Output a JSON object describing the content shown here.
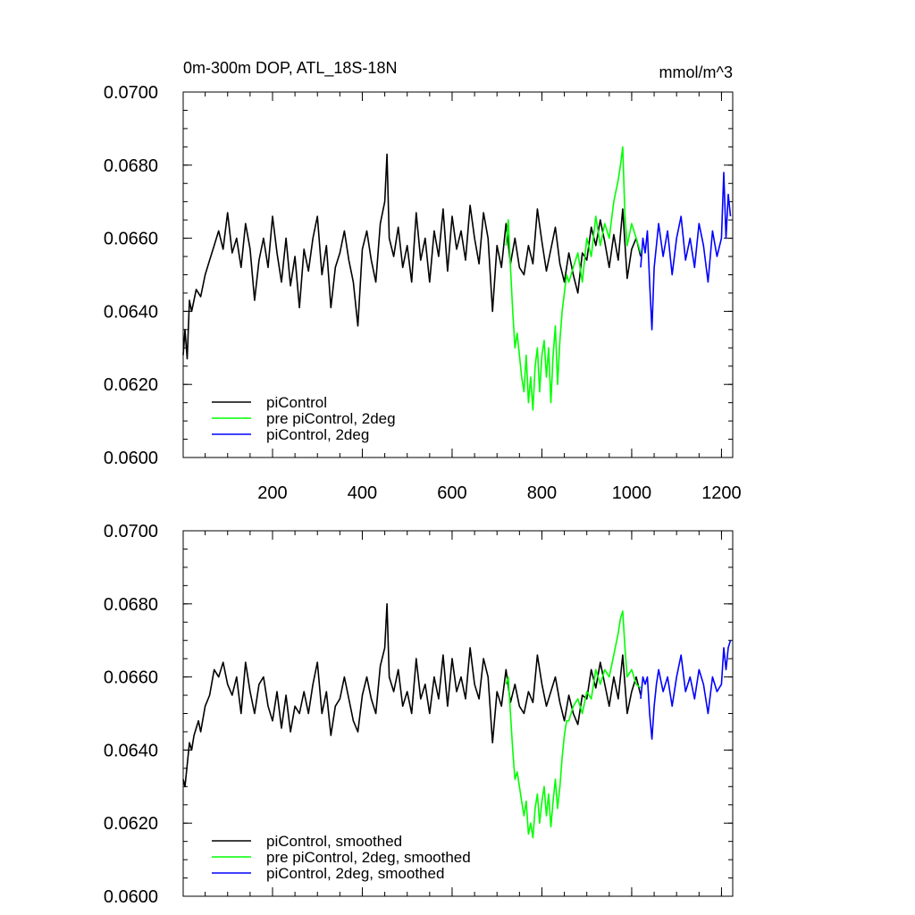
{
  "title_left": "0m-300m DOP, ATL_18S-18N",
  "title_right": "mmol/m^3",
  "series_style": [
    {
      "key": "piControl",
      "color": "#000000"
    },
    {
      "key": "pre_piControl_2deg",
      "color": "#00ff00"
    },
    {
      "key": "piControl_2deg",
      "color": "#0000ff"
    }
  ],
  "chart_data": [
    {
      "type": "line",
      "title": "0m-300m DOP, ATL_18S-18N",
      "units": "mmol/m^3",
      "xlim": [
        1,
        1225
      ],
      "ylim": [
        0.06,
        0.07
      ],
      "xticks": [
        200,
        400,
        600,
        800,
        1000,
        1200
      ],
      "xtick_labels": [
        "200",
        "400",
        "600",
        "800",
        "1000",
        "1200"
      ],
      "yticks": [
        0.06,
        0.062,
        0.064,
        0.066,
        0.068,
        0.07
      ],
      "ytick_labels": [
        "0.0600",
        "0.0620",
        "0.0640",
        "0.0660",
        "0.0680",
        "0.0700"
      ],
      "legend_position": "bottom-left",
      "series": [
        {
          "name": "piControl",
          "color": "#000000",
          "x": [
            1,
            5,
            10,
            15,
            20,
            30,
            40,
            50,
            60,
            70,
            80,
            90,
            100,
            110,
            120,
            130,
            140,
            150,
            160,
            170,
            180,
            190,
            200,
            210,
            220,
            230,
            240,
            250,
            260,
            270,
            280,
            290,
            300,
            310,
            320,
            330,
            340,
            350,
            360,
            370,
            380,
            390,
            400,
            410,
            420,
            430,
            440,
            450,
            455,
            460,
            470,
            480,
            490,
            500,
            510,
            520,
            530,
            540,
            550,
            560,
            570,
            580,
            590,
            600,
            610,
            620,
            630,
            640,
            650,
            660,
            670,
            680,
            690,
            700,
            710,
            720,
            730,
            740,
            750,
            760,
            770,
            780,
            790,
            800,
            810,
            820,
            830,
            840,
            850,
            860,
            870,
            880,
            890,
            900,
            910,
            920,
            930,
            940,
            950,
            960,
            970,
            980,
            990,
            1000,
            1010,
            1020
          ],
          "y": [
            0.0628,
            0.0635,
            0.0627,
            0.0643,
            0.064,
            0.0646,
            0.0644,
            0.065,
            0.0654,
            0.0658,
            0.0662,
            0.0657,
            0.0667,
            0.0656,
            0.066,
            0.0652,
            0.0664,
            0.0657,
            0.0643,
            0.0654,
            0.066,
            0.0652,
            0.0666,
            0.0656,
            0.0648,
            0.066,
            0.0647,
            0.0655,
            0.0641,
            0.0657,
            0.0651,
            0.066,
            0.0666,
            0.065,
            0.0658,
            0.0641,
            0.0652,
            0.0656,
            0.0662,
            0.0654,
            0.0648,
            0.0636,
            0.0657,
            0.0662,
            0.0654,
            0.0648,
            0.0664,
            0.067,
            0.0683,
            0.066,
            0.0655,
            0.0663,
            0.0652,
            0.0658,
            0.0648,
            0.0667,
            0.0654,
            0.066,
            0.0648,
            0.0662,
            0.0655,
            0.0668,
            0.0651,
            0.0666,
            0.0657,
            0.0662,
            0.0654,
            0.0669,
            0.066,
            0.0653,
            0.0667,
            0.066,
            0.064,
            0.0658,
            0.0652,
            0.0664,
            0.0653,
            0.066,
            0.0652,
            0.065,
            0.0658,
            0.0653,
            0.0668,
            0.0659,
            0.0651,
            0.0657,
            0.0663,
            0.0653,
            0.0648,
            0.0656,
            0.065,
            0.0645,
            0.0656,
            0.0654,
            0.0663,
            0.0658,
            0.0665,
            0.0659,
            0.0652,
            0.0661,
            0.0654,
            0.0668,
            0.0649,
            0.0657,
            0.066,
            0.0655
          ]
        },
        {
          "name": "pre piControl, 2deg",
          "color": "#00ff00",
          "x": [
            720,
            725,
            730,
            735,
            740,
            745,
            750,
            755,
            760,
            765,
            770,
            775,
            780,
            785,
            790,
            795,
            800,
            805,
            810,
            815,
            820,
            825,
            830,
            835,
            840,
            845,
            850,
            855,
            860,
            870,
            880,
            890,
            900,
            910,
            920,
            930,
            940,
            950,
            960,
            970,
            975,
            980,
            985,
            990,
            1000,
            1010,
            1020
          ],
          "y": [
            0.0658,
            0.0665,
            0.0652,
            0.064,
            0.063,
            0.0634,
            0.0628,
            0.0622,
            0.0618,
            0.0628,
            0.0615,
            0.0622,
            0.0613,
            0.0625,
            0.063,
            0.0618,
            0.0628,
            0.0632,
            0.0622,
            0.063,
            0.0615,
            0.0628,
            0.0636,
            0.062,
            0.0632,
            0.064,
            0.0645,
            0.065,
            0.0648,
            0.0652,
            0.0656,
            0.0648,
            0.066,
            0.0655,
            0.0666,
            0.0658,
            0.0664,
            0.066,
            0.067,
            0.0676,
            0.068,
            0.0685,
            0.0666,
            0.0658,
            0.0664,
            0.066,
            0.0656
          ]
        },
        {
          "name": "piControl, 2deg",
          "color": "#0000ff",
          "x": [
            1020,
            1025,
            1030,
            1035,
            1040,
            1045,
            1050,
            1055,
            1060,
            1070,
            1080,
            1090,
            1100,
            1110,
            1120,
            1130,
            1140,
            1150,
            1160,
            1170,
            1180,
            1190,
            1200,
            1205,
            1210,
            1215,
            1220
          ],
          "y": [
            0.0652,
            0.066,
            0.0656,
            0.0662,
            0.0648,
            0.0635,
            0.0652,
            0.0658,
            0.0664,
            0.0655,
            0.0662,
            0.065,
            0.066,
            0.0666,
            0.0654,
            0.066,
            0.0652,
            0.0664,
            0.0658,
            0.0648,
            0.0662,
            0.0655,
            0.066,
            0.0678,
            0.066,
            0.0672,
            0.0666
          ]
        }
      ]
    },
    {
      "type": "line",
      "xlim": [
        1,
        1225
      ],
      "ylim": [
        0.06,
        0.07
      ],
      "xticks": [
        200,
        400,
        600,
        800,
        1000,
        1200
      ],
      "yticks": [
        0.06,
        0.062,
        0.064,
        0.066,
        0.068,
        0.07
      ],
      "ytick_labels": [
        "0.0600",
        "0.0620",
        "0.0640",
        "0.0660",
        "0.0680",
        "0.0700"
      ],
      "legend_position": "bottom-left",
      "series": [
        {
          "name": "piControl, smoothed",
          "color": "#000000",
          "x": [
            1,
            5,
            10,
            15,
            20,
            25,
            30,
            35,
            40,
            50,
            60,
            70,
            80,
            90,
            100,
            110,
            120,
            130,
            140,
            150,
            160,
            170,
            180,
            190,
            200,
            210,
            220,
            230,
            240,
            250,
            260,
            270,
            280,
            290,
            300,
            310,
            320,
            330,
            340,
            350,
            360,
            370,
            380,
            390,
            400,
            410,
            420,
            430,
            440,
            450,
            455,
            460,
            470,
            480,
            490,
            500,
            510,
            520,
            530,
            540,
            550,
            560,
            570,
            580,
            590,
            600,
            610,
            620,
            630,
            640,
            650,
            660,
            670,
            680,
            690,
            700,
            710,
            720,
            730,
            740,
            750,
            760,
            770,
            780,
            790,
            800,
            810,
            820,
            830,
            840,
            850,
            860,
            870,
            880,
            890,
            900,
            910,
            920,
            930,
            940,
            950,
            960,
            970,
            980,
            990,
            1000,
            1010,
            1020
          ],
          "y": [
            0.0632,
            0.063,
            0.0636,
            0.0642,
            0.064,
            0.0644,
            0.0646,
            0.0648,
            0.0645,
            0.0652,
            0.0655,
            0.0662,
            0.066,
            0.0664,
            0.0658,
            0.0655,
            0.066,
            0.065,
            0.0664,
            0.0656,
            0.065,
            0.0658,
            0.066,
            0.0652,
            0.0648,
            0.0656,
            0.0646,
            0.0655,
            0.0645,
            0.0652,
            0.065,
            0.0656,
            0.065,
            0.0658,
            0.0664,
            0.065,
            0.0656,
            0.0644,
            0.0652,
            0.0654,
            0.066,
            0.0654,
            0.0648,
            0.0645,
            0.0655,
            0.066,
            0.0654,
            0.065,
            0.0663,
            0.0668,
            0.068,
            0.066,
            0.0656,
            0.0662,
            0.0652,
            0.0656,
            0.065,
            0.0665,
            0.0654,
            0.0658,
            0.065,
            0.066,
            0.0654,
            0.0666,
            0.0652,
            0.0665,
            0.0656,
            0.066,
            0.0654,
            0.0668,
            0.0658,
            0.0654,
            0.0665,
            0.066,
            0.0642,
            0.0656,
            0.0652,
            0.0662,
            0.0653,
            0.0658,
            0.0652,
            0.065,
            0.0656,
            0.0653,
            0.0666,
            0.0658,
            0.0652,
            0.0656,
            0.066,
            0.0653,
            0.0648,
            0.0655,
            0.065,
            0.0647,
            0.0655,
            0.0654,
            0.0662,
            0.0657,
            0.0664,
            0.0658,
            0.0652,
            0.066,
            0.0654,
            0.0666,
            0.065,
            0.0656,
            0.066,
            0.0655
          ]
        },
        {
          "name": "pre piControl, 2deg, smoothed",
          "color": "#00ff00",
          "x": [
            720,
            725,
            730,
            735,
            740,
            745,
            750,
            755,
            760,
            765,
            770,
            775,
            780,
            785,
            790,
            795,
            800,
            805,
            810,
            815,
            820,
            825,
            830,
            835,
            840,
            845,
            850,
            855,
            860,
            870,
            880,
            890,
            900,
            910,
            920,
            930,
            940,
            950,
            960,
            970,
            975,
            980,
            985,
            990,
            1000,
            1010,
            1020
          ],
          "y": [
            0.0658,
            0.066,
            0.065,
            0.064,
            0.0632,
            0.0634,
            0.063,
            0.0626,
            0.0622,
            0.0626,
            0.0617,
            0.062,
            0.0616,
            0.0624,
            0.0628,
            0.062,
            0.0626,
            0.063,
            0.0622,
            0.0628,
            0.0619,
            0.0626,
            0.0632,
            0.0624,
            0.063,
            0.0638,
            0.0644,
            0.0648,
            0.0648,
            0.0652,
            0.0654,
            0.065,
            0.0656,
            0.0654,
            0.0662,
            0.0658,
            0.0662,
            0.066,
            0.0666,
            0.0672,
            0.0676,
            0.0678,
            0.0668,
            0.066,
            0.0662,
            0.0658,
            0.0657
          ]
        },
        {
          "name": "piControl, 2deg, smoothed",
          "color": "#0000ff",
          "x": [
            1020,
            1025,
            1030,
            1035,
            1040,
            1045,
            1050,
            1055,
            1060,
            1070,
            1080,
            1090,
            1100,
            1110,
            1120,
            1130,
            1140,
            1150,
            1160,
            1170,
            1180,
            1190,
            1200,
            1205,
            1210,
            1215,
            1220
          ],
          "y": [
            0.0654,
            0.066,
            0.0658,
            0.066,
            0.065,
            0.0643,
            0.0652,
            0.0658,
            0.0662,
            0.0656,
            0.066,
            0.0652,
            0.066,
            0.0666,
            0.0656,
            0.066,
            0.0654,
            0.0662,
            0.0658,
            0.065,
            0.066,
            0.0656,
            0.0658,
            0.0668,
            0.0662,
            0.0668,
            0.067
          ]
        }
      ]
    }
  ]
}
